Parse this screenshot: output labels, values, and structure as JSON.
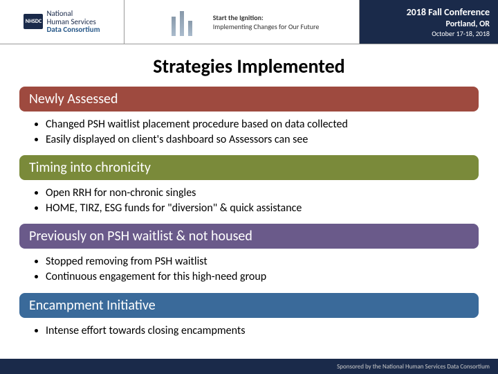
{
  "header": {
    "logo_badge": "NHSDC",
    "logo_line1": "National",
    "logo_line2": "Human Services",
    "logo_line3": "Data Consortium",
    "tagline_line1": "Start the Ignition:",
    "tagline_line2": "Implementing Changes for Our Future",
    "conf_title": "2018 Fall Conference",
    "conf_location": "Portland, OR",
    "conf_dates": "October 17-18, 2018"
  },
  "title": "Strategies Implemented",
  "sections": [
    {
      "heading": "Newly Assessed",
      "color": "#9e4a3f",
      "bullets": [
        "Changed PSH waitlist placement procedure based on data collected",
        "Easily displayed on client's dashboard so Assessors can see"
      ]
    },
    {
      "heading": "Timing into chronicity",
      "color": "#7a8a3a",
      "bullets": [
        "Open RRH for non-chronic singles",
        "HOME, TIRZ, ESG funds for \"diversion\" & quick assistance"
      ]
    },
    {
      "heading": "Previously on PSH waitlist & not housed",
      "color": "#6a5a8a",
      "bullets": [
        "Stopped removing from PSH waitlist",
        "Continuous engagement for this high-need group"
      ]
    },
    {
      "heading": "Encampment Initiative",
      "color": "#3a6a9a",
      "bullets": [
        "Intense effort towards closing encampments"
      ]
    }
  ],
  "footer_text": "Sponsored by the National Human Services Data Consortium"
}
